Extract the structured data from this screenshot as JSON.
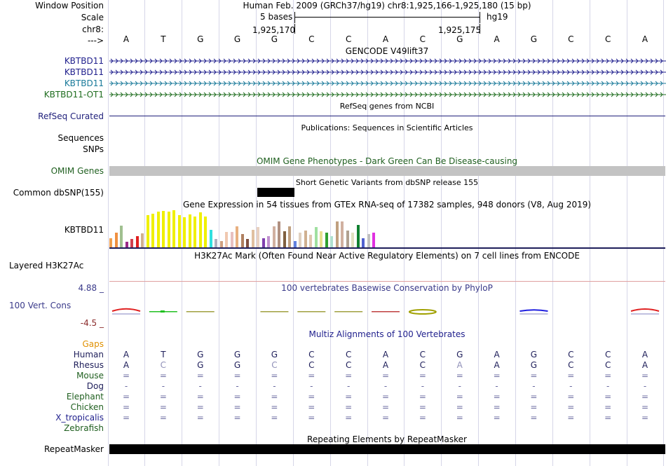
{
  "header": {
    "position_label": "Window Position",
    "scale_label": "Scale",
    "chrom_label": "chr8:",
    "strand_label": "--->",
    "assembly_text": "Human Feb. 2009 (GRCh37/hg19)   chr8:1,925,166-1,925,180 (15 bp)",
    "scale_text": "5 bases",
    "scale_db": "hg19",
    "tick_left": "1,925,170",
    "tick_right": "1,925,175"
  },
  "sequence": [
    "A",
    "T",
    "G",
    "G",
    "G",
    "C",
    "C",
    "A",
    "C",
    "G",
    "A",
    "G",
    "C",
    "C",
    "A"
  ],
  "tracks": {
    "gencode": {
      "title": "GENCODE V49lift37",
      "rows": [
        {
          "label": "KBTBD11",
          "color": "#1e1e8c"
        },
        {
          "label": "KBTBD11",
          "color": "#1e1e8c"
        },
        {
          "label": "KBTBD11",
          "color": "#1a7a9a"
        },
        {
          "label": "KBTBD11-OT1",
          "color": "#1f6d1f"
        }
      ]
    },
    "refseq": {
      "label": "RefSeq Curated",
      "title": "RefSeq genes from NCBI",
      "color": "#1e1e7a"
    },
    "publications": {
      "title": "Publications: Sequences in Scientific Articles",
      "labels": [
        "Sequences",
        "SNPs"
      ]
    },
    "omim": {
      "label": "OMIM Genes",
      "title": "OMIM Gene Phenotypes - Dark Green Can Be Disease-causing",
      "color": "#1f5f1f"
    },
    "dbsnp": {
      "label": "Common dbSNP(155)",
      "title": "Short Genetic Variants from dbSNP release 155"
    },
    "gtex": {
      "label": "KBTBD11",
      "title": "Gene Expression in 54 tissues from GTEx RNA-seq of 17382 samples, 948 donors (V8, Aug 2019)",
      "bars": [
        {
          "v": 0.24,
          "c": "#f0a050"
        },
        {
          "v": 0.4,
          "c": "#f09040"
        },
        {
          "v": 0.58,
          "c": "#a0c090"
        },
        {
          "v": 0.16,
          "c": "#9a2a88"
        },
        {
          "v": 0.22,
          "c": "#d04050"
        },
        {
          "v": 0.3,
          "c": "#e02020"
        },
        {
          "v": 0.38,
          "c": "#d0b090"
        },
        {
          "v": 0.87,
          "c": "#f0f000"
        },
        {
          "v": 0.91,
          "c": "#f0f000"
        },
        {
          "v": 0.96,
          "c": "#f0f000"
        },
        {
          "v": 0.98,
          "c": "#f0f000"
        },
        {
          "v": 0.96,
          "c": "#f0f000"
        },
        {
          "v": 1.0,
          "c": "#f0f000"
        },
        {
          "v": 0.86,
          "c": "#f0f000"
        },
        {
          "v": 0.82,
          "c": "#f0f000"
        },
        {
          "v": 0.88,
          "c": "#f0f000"
        },
        {
          "v": 0.84,
          "c": "#f0f000"
        },
        {
          "v": 0.94,
          "c": "#f0f000"
        },
        {
          "v": 0.84,
          "c": "#f0f000"
        },
        {
          "v": 0.48,
          "c": "#30e0e0"
        },
        {
          "v": 0.22,
          "c": "#b0b0c0"
        },
        {
          "v": 0.18,
          "c": "#d0a080"
        },
        {
          "v": 0.42,
          "c": "#f0c8b0"
        },
        {
          "v": 0.42,
          "c": "#e8c0c0"
        },
        {
          "v": 0.56,
          "c": "#e8b080"
        },
        {
          "v": 0.36,
          "c": "#b08060"
        },
        {
          "v": 0.22,
          "c": "#805040"
        },
        {
          "v": 0.48,
          "c": "#e0c0a0"
        },
        {
          "v": 0.54,
          "c": "#e8d0c0"
        },
        {
          "v": 0.24,
          "c": "#8040b0"
        },
        {
          "v": 0.3,
          "c": "#c090d0"
        },
        {
          "v": 0.56,
          "c": "#d0b0a0"
        },
        {
          "v": 0.7,
          "c": "#b09080"
        },
        {
          "v": 0.44,
          "c": "#806040"
        },
        {
          "v": 0.56,
          "c": "#c0a080"
        },
        {
          "v": 0.18,
          "c": "#6080e0"
        },
        {
          "v": 0.4,
          "c": "#e0d0c0"
        },
        {
          "v": 0.46,
          "c": "#d0b090"
        },
        {
          "v": 0.34,
          "c": "#e0c8b0"
        },
        {
          "v": 0.54,
          "c": "#a0e0a0"
        },
        {
          "v": 0.44,
          "c": "#e8e090"
        },
        {
          "v": 0.4,
          "c": "#30a030"
        },
        {
          "v": 0.3,
          "c": "#b0e0d0"
        },
        {
          "v": 0.7,
          "c": "#c0a080"
        },
        {
          "v": 0.7,
          "c": "#d0b0a0"
        },
        {
          "v": 0.46,
          "c": "#b0a090"
        },
        {
          "v": 0.4,
          "c": "#e0e0c0"
        },
        {
          "v": 0.6,
          "c": "#108030"
        },
        {
          "v": 0.24,
          "c": "#5060d0"
        },
        {
          "v": 0.36,
          "c": "#c0c0c0"
        },
        {
          "v": 0.4,
          "c": "#e030e0"
        }
      ]
    },
    "h3k27ac": {
      "label": "Layered H3K27Ac",
      "title": "H3K27Ac Mark (Often Found Near Active Regulatory Elements) on 7 cell lines from ENCODE"
    },
    "phylop": {
      "label": "100 Vert. Cons",
      "title": "100 vertebrates Basewise Conservation by PhyloP",
      "max_label": "4.88 _",
      "min_label": "-4.5 _",
      "values": [
        1.1,
        -0.4,
        -0.35,
        0.0,
        -0.35,
        -0.25,
        -0.25,
        -0.35,
        -0.9,
        0.0,
        0.0,
        0.6,
        0.0,
        0.0,
        1.0
      ],
      "colors": [
        "#e02020",
        "#20c020",
        "#a0a040",
        "#ffffff",
        "#a0a040",
        "#a0a040",
        "#a0a040",
        "#c04040",
        "#a0a000",
        "#ffffff",
        "#ffffff",
        "#2020e0",
        "#ffffff",
        "#ffffff",
        "#e02020"
      ]
    },
    "multiz": {
      "title": "Multiz Alignments of 100 Vertebrates",
      "gaps_label": "Gaps",
      "species": [
        {
          "label": "Human",
          "color": "#1e1e5a",
          "row": [
            "A",
            "T",
            "G",
            "G",
            "G",
            "C",
            "C",
            "A",
            "C",
            "G",
            "A",
            "G",
            "C",
            "C",
            "A"
          ]
        },
        {
          "label": "Rhesus",
          "color": "#1e1e5a",
          "row": [
            "A",
            "C",
            "G",
            "G",
            "C",
            "C",
            "C",
            "A",
            "C",
            "A",
            "A",
            "G",
            "C",
            "C",
            "A"
          ]
        },
        {
          "label": "Mouse",
          "color": "#1f5f1f",
          "row": [
            "=",
            "=",
            "=",
            "=",
            "=",
            "=",
            "=",
            "=",
            "=",
            "=",
            "=",
            "=",
            "=",
            "=",
            "="
          ]
        },
        {
          "label": "Dog",
          "color": "#1e1e5a",
          "row": [
            "-",
            "-",
            "-",
            "-",
            "-",
            "-",
            "-",
            "-",
            "-",
            "-",
            "-",
            "-",
            "-",
            "-",
            "-"
          ]
        },
        {
          "label": "Elephant",
          "color": "#1f5f1f",
          "row": [
            "=",
            "=",
            "=",
            "=",
            "=",
            "=",
            "=",
            "=",
            "=",
            "=",
            "=",
            "=",
            "=",
            "=",
            "="
          ]
        },
        {
          "label": "Chicken",
          "color": "#1f5f1f",
          "row": [
            "=",
            "=",
            "=",
            "=",
            "=",
            "=",
            "=",
            "=",
            "=",
            "=",
            "=",
            "=",
            "=",
            "=",
            "="
          ]
        },
        {
          "label": "X_tropicalis",
          "color": "#1e1e8c",
          "row": [
            "=",
            "=",
            "=",
            "=",
            "=",
            "=",
            "=",
            "=",
            "=",
            "=",
            "=",
            "=",
            "=",
            "=",
            "="
          ]
        },
        {
          "label": "Zebrafish",
          "color": "#1f5f1f",
          "row": [
            "",
            "",
            "",
            "",
            "",
            "",
            "",
            "",
            "",
            "",
            "",
            "",
            "",
            "",
            ""
          ]
        }
      ],
      "rhesus_mismatch_color": "#9090b8"
    },
    "repeatmasker": {
      "label": "RepeatMasker",
      "title": "Repeating Elements by RepeatMasker"
    }
  }
}
